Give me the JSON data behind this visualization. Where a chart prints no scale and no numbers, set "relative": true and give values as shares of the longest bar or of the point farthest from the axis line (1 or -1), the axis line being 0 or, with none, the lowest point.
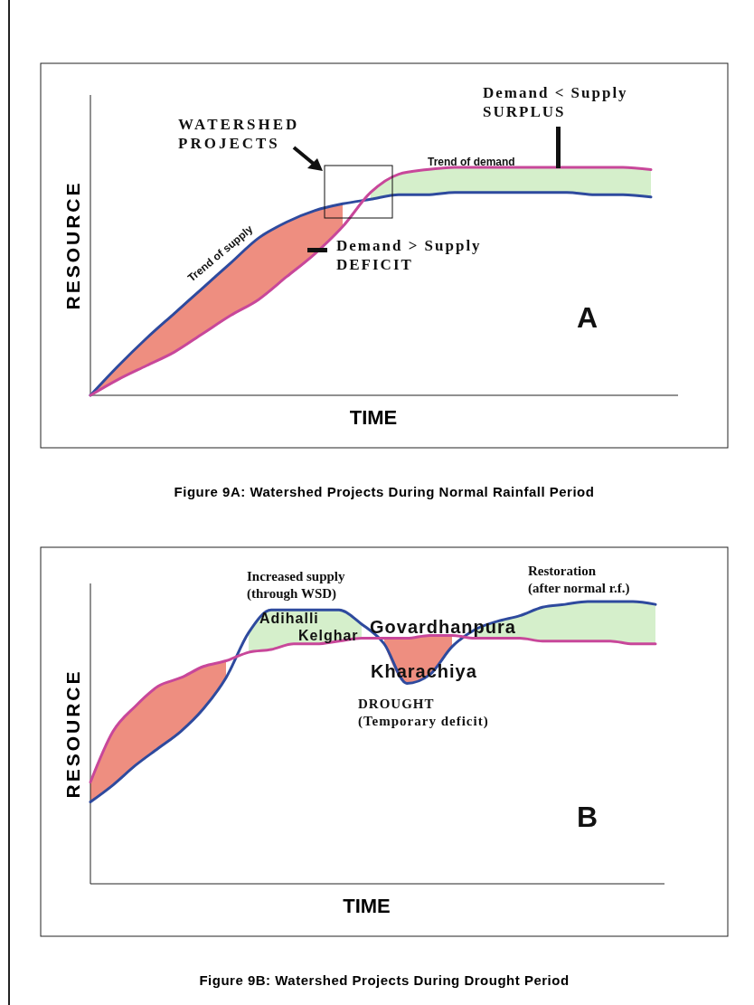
{
  "chart_data": [
    {
      "type": "line",
      "relative": true,
      "title": "Figure 9A: Watershed Projects During Normal Rainfall Period",
      "xlabel": "TIME",
      "ylabel": "RESOURCE",
      "categories": [
        null,
        null,
        null,
        null,
        null,
        null,
        null,
        null,
        null,
        null,
        null,
        null,
        null,
        null,
        null,
        null,
        null,
        null,
        null,
        null,
        null
      ],
      "series": [
        {
          "name": "Trend of supply",
          "color": "#2e4a9e",
          "values": [
            0,
            0.13,
            0.25,
            0.36,
            0.47,
            0.58,
            0.69,
            0.76,
            0.81,
            0.84,
            0.86,
            0.88,
            0.88,
            0.89,
            0.89,
            0.89,
            0.89,
            0.89,
            0.88,
            0.88,
            0.87
          ],
          "lower": [
            null,
            null,
            null,
            null,
            null,
            null,
            null,
            null,
            null,
            null,
            0.86,
            0.88,
            0.88,
            0.89,
            0.89,
            0.89,
            0.89,
            0.89,
            0.88,
            0.88,
            0.87
          ],
          "upper": [
            null,
            null,
            null,
            null,
            null,
            null,
            null,
            null,
            null,
            null,
            0.89,
            0.97,
            0.99,
            1,
            1,
            1,
            1,
            1,
            1,
            1,
            0.99
          ]
        },
        {
          "name": "Trend of demand",
          "color": "#c8479a",
          "values": [
            0,
            0.07,
            0.13,
            0.19,
            0.27,
            0.35,
            0.42,
            0.52,
            0.62,
            0.74,
            0.89,
            0.97,
            0.99,
            1,
            1,
            1,
            1,
            1,
            1,
            1,
            0.99
          ],
          "lower": [
            0,
            0.07,
            0.13,
            0.19,
            0.27,
            0.35,
            0.42,
            0.52,
            0.62,
            0.74,
            null,
            null,
            null,
            null,
            null,
            null,
            null,
            null,
            null,
            null,
            null
          ],
          "upper": [
            0,
            0.13,
            0.25,
            0.36,
            0.47,
            0.58,
            0.69,
            0.76,
            0.81,
            0.84,
            null,
            null,
            null,
            null,
            null,
            null,
            null,
            null,
            null,
            null,
            null
          ]
        }
      ],
      "annotations": [
        "WATERSHED\nPROJECTS",
        "Demand < Supply\nSURPLUS",
        "Demand > Supply\nDEFICIT",
        "A"
      ]
    },
    {
      "type": "line",
      "relative": true,
      "title": "Figure 9B: Watershed Projects During Drought  Period",
      "xlabel": "TIME",
      "ylabel": "RESOURCE",
      "categories": [
        null,
        null,
        null,
        null,
        null,
        null,
        null,
        null,
        null,
        null,
        null,
        null,
        null,
        null,
        null,
        null,
        null,
        null,
        null,
        null,
        null,
        null,
        null,
        null,
        null,
        null
      ],
      "series": [
        {
          "color": "#2e4a9e",
          "values": [
            0.29,
            0.35,
            0.42,
            0.48,
            0.54,
            0.62,
            0.73,
            0.89,
            0.97,
            0.97,
            0.97,
            0.97,
            0.92,
            0.85,
            0.71,
            0.74,
            0.84,
            0.9,
            0.93,
            0.95,
            0.98,
            0.99,
            1,
            1,
            1,
            0.99
          ],
          "lower": [
            null,
            null,
            null,
            null,
            null,
            null,
            null,
            0.82,
            0.83,
            0.85,
            0.85,
            0.86,
            0.87,
            null,
            null,
            null,
            null,
            0.87,
            0.87,
            0.87,
            0.86,
            0.86,
            0.86,
            0.86,
            0.85,
            0.85
          ],
          "upper": [
            null,
            null,
            null,
            null,
            null,
            null,
            null,
            0.89,
            0.97,
            0.97,
            0.97,
            0.97,
            0.92,
            null,
            null,
            null,
            null,
            0.9,
            0.93,
            0.95,
            0.98,
            0.99,
            1,
            1,
            1,
            0.99
          ]
        },
        {
          "color": "#c8479a",
          "values": [
            0.36,
            0.54,
            0.63,
            0.7,
            0.73,
            0.77,
            0.79,
            0.82,
            0.83,
            0.85,
            0.85,
            0.86,
            0.87,
            0.87,
            0.87,
            0.88,
            0.88,
            0.87,
            0.87,
            0.87,
            0.86,
            0.86,
            0.86,
            0.86,
            0.85,
            0.85
          ],
          "lower": [
            0.29,
            0.35,
            0.42,
            0.48,
            0.54,
            0.62,
            0.73,
            null,
            null,
            null,
            null,
            null,
            null,
            0.85,
            0.71,
            0.74,
            0.84,
            null,
            null,
            null,
            null,
            null,
            null,
            null,
            null,
            null
          ],
          "upper": [
            0.36,
            0.54,
            0.63,
            0.7,
            0.73,
            0.77,
            0.79,
            null,
            null,
            null,
            null,
            null,
            null,
            0.87,
            0.87,
            0.88,
            0.88,
            null,
            null,
            null,
            null,
            null,
            null,
            null,
            null,
            null
          ]
        }
      ],
      "annotations": [
        "Increased supply\n(through WSD)",
        "Adihalli",
        "Kelghar",
        "Govardhanpura",
        "Kharachiya",
        "DROUGHT\n(Temporary deficit)",
        "Restoration\n(after normal r.f.)",
        "B"
      ]
    }
  ]
}
